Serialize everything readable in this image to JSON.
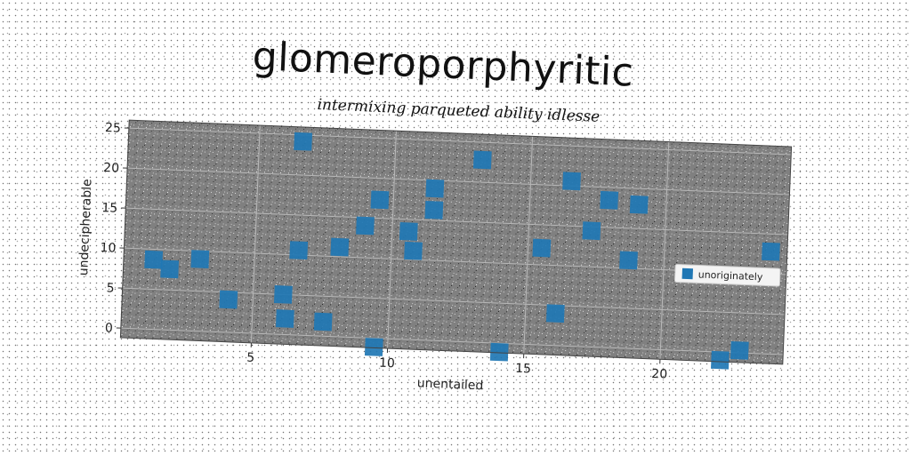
{
  "chart_data": {
    "type": "scatter",
    "title": "glomeroporphyritic",
    "subtitle": "intermixing parqueted ability idlesse",
    "xlabel": "unentailed",
    "ylabel": "undecipherable",
    "xlim": [
      0.2,
      24.5
    ],
    "ylim": [
      -1.2,
      26
    ],
    "xticks": [
      5,
      10,
      15,
      20
    ],
    "yticks": [
      0,
      5,
      10,
      15,
      20,
      25
    ],
    "grid": true,
    "legend_position": "right",
    "marker": "square",
    "series": [
      {
        "name": "unoriginately",
        "color": "#1f77b4",
        "points": [
          {
            "x": 1.3,
            "y": 8.7
          },
          {
            "x": 1.9,
            "y": 7.6
          },
          {
            "x": 3.0,
            "y": 9.0
          },
          {
            "x": 4.1,
            "y": 4.1
          },
          {
            "x": 6.1,
            "y": 5.0
          },
          {
            "x": 6.2,
            "y": 2.0
          },
          {
            "x": 6.6,
            "y": 24.2
          },
          {
            "x": 6.6,
            "y": 10.6
          },
          {
            "x": 7.6,
            "y": 1.8
          },
          {
            "x": 8.1,
            "y": 11.2
          },
          {
            "x": 9.0,
            "y": 14.0
          },
          {
            "x": 9.5,
            "y": 17.3
          },
          {
            "x": 9.5,
            "y": -1.1
          },
          {
            "x": 10.6,
            "y": 13.5
          },
          {
            "x": 10.8,
            "y": 11.1
          },
          {
            "x": 11.5,
            "y": 19.0
          },
          {
            "x": 11.5,
            "y": 16.3
          },
          {
            "x": 13.2,
            "y": 22.8
          },
          {
            "x": 14.1,
            "y": -1.1
          },
          {
            "x": 15.5,
            "y": 12.1
          },
          {
            "x": 16.1,
            "y": 4.0
          },
          {
            "x": 16.5,
            "y": 20.6
          },
          {
            "x": 17.3,
            "y": 14.5
          },
          {
            "x": 17.9,
            "y": 18.4
          },
          {
            "x": 18.7,
            "y": 11.0
          },
          {
            "x": 19.0,
            "y": 18.0
          },
          {
            "x": 22.2,
            "y": -1.0
          },
          {
            "x": 22.9,
            "y": 0.3
          },
          {
            "x": 23.9,
            "y": 12.8
          }
        ]
      }
    ]
  }
}
